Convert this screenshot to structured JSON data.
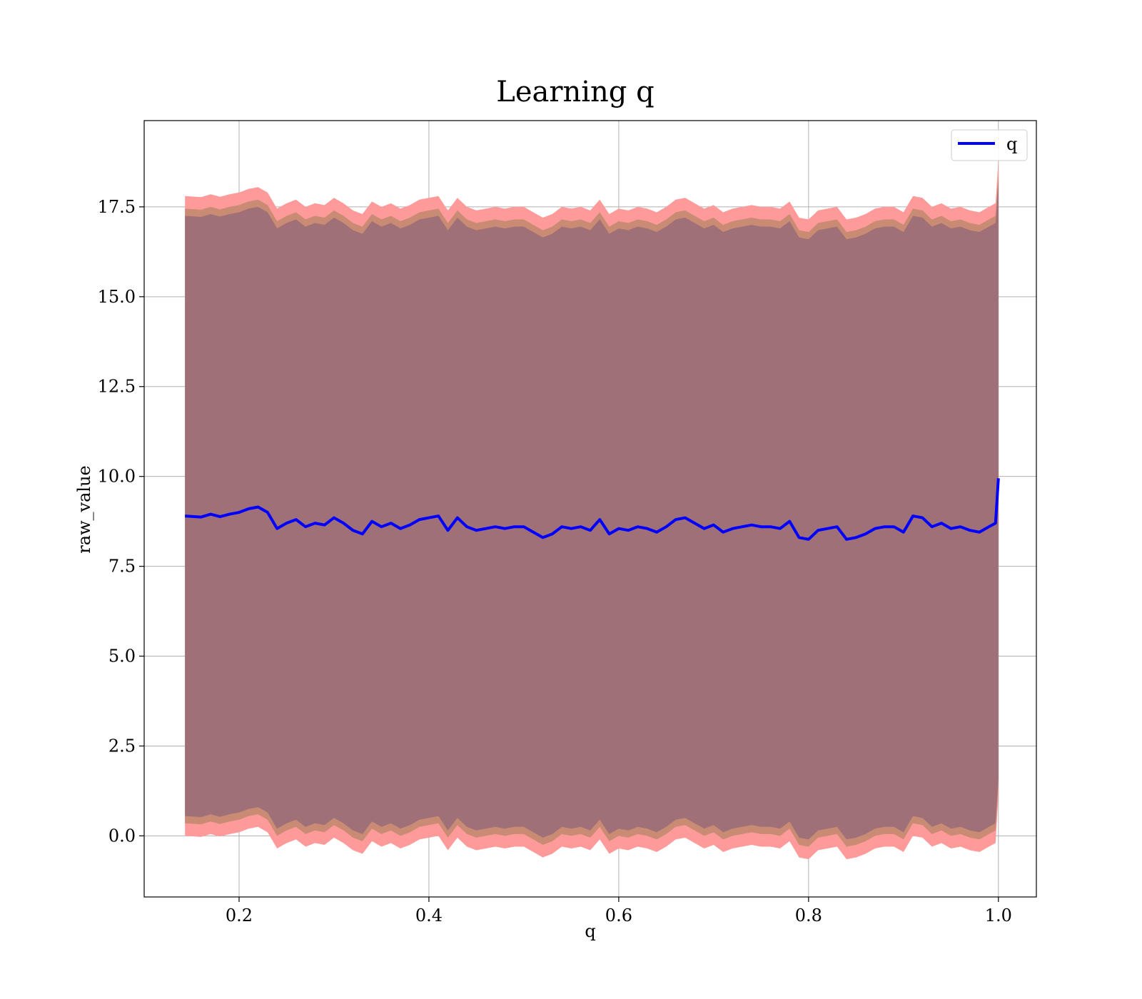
{
  "chart_data": {
    "type": "line",
    "title": "Learning q",
    "xlabel": "q",
    "ylabel": "raw_value",
    "xlim": [
      0.1,
      1.04
    ],
    "ylim": [
      -1.7,
      19.9
    ],
    "grid": true,
    "legend_position": "top-right",
    "x_ticks": [
      0.2,
      0.4,
      0.6,
      0.8,
      1.0
    ],
    "x_tick_labels": [
      "0.2",
      "0.4",
      "0.6",
      "0.8",
      "1.0"
    ],
    "y_ticks": [
      0.0,
      2.5,
      5.0,
      7.5,
      10.0,
      12.5,
      15.0,
      17.5
    ],
    "y_tick_labels": [
      "0.0",
      "2.5",
      "5.0",
      "7.5",
      "10.0",
      "12.5",
      "15.0",
      "17.5"
    ],
    "colors": {
      "line": "#0000ff",
      "band_outer": "#ff9a9a",
      "band_middle": "#c98b73",
      "band_inner": "#a07078",
      "grid": "#b0b0b0"
    },
    "series": [
      {
        "name": "q",
        "x": [
          0.143,
          0.16,
          0.17,
          0.18,
          0.19,
          0.2,
          0.21,
          0.22,
          0.23,
          0.24,
          0.25,
          0.26,
          0.27,
          0.28,
          0.29,
          0.3,
          0.31,
          0.32,
          0.33,
          0.34,
          0.35,
          0.36,
          0.37,
          0.38,
          0.39,
          0.4,
          0.41,
          0.42,
          0.43,
          0.44,
          0.45,
          0.46,
          0.47,
          0.48,
          0.49,
          0.5,
          0.51,
          0.52,
          0.53,
          0.54,
          0.55,
          0.56,
          0.57,
          0.58,
          0.59,
          0.6,
          0.61,
          0.62,
          0.63,
          0.64,
          0.65,
          0.66,
          0.67,
          0.68,
          0.69,
          0.7,
          0.71,
          0.72,
          0.73,
          0.74,
          0.75,
          0.76,
          0.77,
          0.78,
          0.79,
          0.8,
          0.81,
          0.82,
          0.83,
          0.84,
          0.85,
          0.86,
          0.87,
          0.88,
          0.89,
          0.9,
          0.91,
          0.92,
          0.93,
          0.94,
          0.95,
          0.96,
          0.97,
          0.98,
          0.99,
          0.997,
          1.0
        ],
        "values": [
          8.9,
          8.87,
          8.95,
          8.88,
          8.95,
          9.0,
          9.1,
          9.15,
          9.0,
          8.55,
          8.7,
          8.8,
          8.6,
          8.7,
          8.65,
          8.85,
          8.7,
          8.5,
          8.4,
          8.75,
          8.6,
          8.7,
          8.55,
          8.65,
          8.8,
          8.85,
          8.9,
          8.5,
          8.85,
          8.6,
          8.5,
          8.55,
          8.6,
          8.55,
          8.6,
          8.6,
          8.45,
          8.3,
          8.4,
          8.6,
          8.55,
          8.6,
          8.5,
          8.8,
          8.4,
          8.55,
          8.5,
          8.6,
          8.55,
          8.45,
          8.6,
          8.8,
          8.85,
          8.7,
          8.55,
          8.65,
          8.45,
          8.55,
          8.6,
          8.65,
          8.6,
          8.6,
          8.55,
          8.75,
          8.3,
          8.25,
          8.5,
          8.55,
          8.6,
          8.25,
          8.3,
          8.4,
          8.55,
          8.6,
          8.6,
          8.45,
          8.9,
          8.85,
          8.6,
          8.7,
          8.55,
          8.6,
          8.5,
          8.45,
          8.6,
          8.7,
          9.95
        ],
        "band_outer_upper": [
          17.8,
          17.77,
          17.85,
          17.78,
          17.85,
          17.9,
          18.0,
          18.05,
          17.9,
          17.45,
          17.6,
          17.7,
          17.5,
          17.6,
          17.55,
          17.75,
          17.6,
          17.4,
          17.3,
          17.65,
          17.5,
          17.6,
          17.45,
          17.55,
          17.7,
          17.75,
          17.8,
          17.4,
          17.75,
          17.5,
          17.4,
          17.45,
          17.5,
          17.45,
          17.5,
          17.5,
          17.35,
          17.2,
          17.3,
          17.5,
          17.45,
          17.5,
          17.4,
          17.7,
          17.3,
          17.45,
          17.4,
          17.5,
          17.45,
          17.35,
          17.5,
          17.7,
          17.75,
          17.6,
          17.45,
          17.55,
          17.35,
          17.45,
          17.5,
          17.55,
          17.5,
          17.5,
          17.45,
          17.65,
          17.2,
          17.15,
          17.4,
          17.45,
          17.5,
          17.15,
          17.2,
          17.3,
          17.45,
          17.5,
          17.5,
          17.35,
          17.8,
          17.75,
          17.5,
          17.6,
          17.45,
          17.5,
          17.4,
          17.35,
          17.5,
          17.6,
          18.8
        ],
        "band_outer_lower": [
          0.0,
          -0.03,
          0.05,
          -0.02,
          0.05,
          0.1,
          0.2,
          0.25,
          0.1,
          -0.35,
          -0.2,
          -0.1,
          -0.3,
          -0.2,
          -0.25,
          -0.05,
          -0.2,
          -0.4,
          -0.5,
          -0.15,
          -0.3,
          -0.2,
          -0.35,
          -0.25,
          -0.1,
          -0.05,
          0.0,
          -0.4,
          -0.05,
          -0.3,
          -0.4,
          -0.35,
          -0.3,
          -0.35,
          -0.3,
          -0.3,
          -0.45,
          -0.6,
          -0.5,
          -0.3,
          -0.35,
          -0.3,
          -0.4,
          -0.1,
          -0.5,
          -0.35,
          -0.4,
          -0.3,
          -0.35,
          -0.45,
          -0.3,
          -0.1,
          -0.05,
          -0.2,
          -0.35,
          -0.25,
          -0.45,
          -0.35,
          -0.3,
          -0.25,
          -0.3,
          -0.3,
          -0.35,
          -0.15,
          -0.6,
          -0.65,
          -0.4,
          -0.35,
          -0.3,
          -0.65,
          -0.6,
          -0.5,
          -0.35,
          -0.3,
          -0.3,
          -0.45,
          0.0,
          -0.05,
          -0.3,
          -0.2,
          -0.35,
          -0.3,
          -0.4,
          -0.45,
          -0.3,
          -0.2,
          1.1
        ],
        "band_middle_upper": [
          17.45,
          17.42,
          17.5,
          17.43,
          17.5,
          17.55,
          17.65,
          17.7,
          17.55,
          17.1,
          17.25,
          17.35,
          17.15,
          17.25,
          17.2,
          17.4,
          17.25,
          17.05,
          16.95,
          17.3,
          17.15,
          17.25,
          17.1,
          17.2,
          17.35,
          17.4,
          17.45,
          17.05,
          17.4,
          17.15,
          17.05,
          17.1,
          17.15,
          17.1,
          17.15,
          17.15,
          17.0,
          16.85,
          16.95,
          17.15,
          17.1,
          17.15,
          17.05,
          17.35,
          16.95,
          17.1,
          17.05,
          17.15,
          17.1,
          17.0,
          17.15,
          17.35,
          17.4,
          17.25,
          17.1,
          17.2,
          17.0,
          17.1,
          17.15,
          17.2,
          17.15,
          17.15,
          17.1,
          17.3,
          16.85,
          16.8,
          17.05,
          17.1,
          17.15,
          16.8,
          16.85,
          16.95,
          17.1,
          17.15,
          17.15,
          17.0,
          17.45,
          17.4,
          17.15,
          17.25,
          17.1,
          17.15,
          17.05,
          17.0,
          17.15,
          17.25,
          18.4
        ],
        "band_middle_lower": [
          0.35,
          0.32,
          0.4,
          0.33,
          0.4,
          0.45,
          0.55,
          0.6,
          0.45,
          0.0,
          0.15,
          0.25,
          0.05,
          0.15,
          0.1,
          0.3,
          0.15,
          -0.05,
          -0.15,
          0.2,
          0.05,
          0.15,
          0.0,
          0.1,
          0.25,
          0.3,
          0.35,
          -0.05,
          0.3,
          0.05,
          -0.05,
          0.0,
          0.05,
          0.0,
          0.05,
          0.05,
          -0.1,
          -0.25,
          -0.15,
          0.05,
          0.0,
          0.05,
          -0.05,
          0.25,
          -0.15,
          0.0,
          -0.05,
          0.05,
          0.0,
          -0.1,
          0.05,
          0.25,
          0.3,
          0.15,
          0.0,
          0.1,
          -0.1,
          0.0,
          0.05,
          0.1,
          0.05,
          0.05,
          0.0,
          0.2,
          -0.25,
          -0.3,
          -0.05,
          0.0,
          0.05,
          -0.3,
          -0.25,
          -0.15,
          0.0,
          0.05,
          0.05,
          -0.1,
          0.35,
          0.3,
          0.05,
          0.15,
          0.0,
          0.05,
          -0.05,
          -0.1,
          0.05,
          0.15,
          1.4
        ],
        "band_inner_upper": [
          17.25,
          17.22,
          17.3,
          17.23,
          17.3,
          17.35,
          17.45,
          17.5,
          17.35,
          16.9,
          17.05,
          17.15,
          16.95,
          17.05,
          17.0,
          17.2,
          17.05,
          16.85,
          16.75,
          17.1,
          16.95,
          17.05,
          16.9,
          17.0,
          17.15,
          17.2,
          17.25,
          16.85,
          17.2,
          16.95,
          16.85,
          16.9,
          16.95,
          16.9,
          16.95,
          16.95,
          16.8,
          16.65,
          16.75,
          16.95,
          16.9,
          16.95,
          16.85,
          17.15,
          16.75,
          16.9,
          16.85,
          16.95,
          16.9,
          16.8,
          16.95,
          17.15,
          17.2,
          17.05,
          16.9,
          17.0,
          16.8,
          16.9,
          16.95,
          17.0,
          16.95,
          16.95,
          16.9,
          17.1,
          16.65,
          16.6,
          16.85,
          16.9,
          16.95,
          16.6,
          16.65,
          16.75,
          16.9,
          16.95,
          16.95,
          16.8,
          17.25,
          17.2,
          16.95,
          17.05,
          16.9,
          16.95,
          16.85,
          16.8,
          16.95,
          17.05,
          18.2
        ],
        "band_inner_lower": [
          0.55,
          0.52,
          0.6,
          0.53,
          0.6,
          0.65,
          0.75,
          0.8,
          0.65,
          0.2,
          0.35,
          0.45,
          0.25,
          0.35,
          0.3,
          0.5,
          0.35,
          0.15,
          0.05,
          0.4,
          0.25,
          0.35,
          0.2,
          0.3,
          0.45,
          0.5,
          0.55,
          0.15,
          0.5,
          0.25,
          0.15,
          0.2,
          0.25,
          0.2,
          0.25,
          0.25,
          0.1,
          -0.05,
          0.05,
          0.25,
          0.2,
          0.25,
          0.15,
          0.45,
          0.05,
          0.2,
          0.15,
          0.25,
          0.2,
          0.1,
          0.25,
          0.45,
          0.5,
          0.35,
          0.2,
          0.3,
          0.1,
          0.2,
          0.25,
          0.3,
          0.25,
          0.25,
          0.2,
          0.4,
          -0.05,
          -0.1,
          0.15,
          0.2,
          0.25,
          -0.1,
          -0.05,
          0.05,
          0.2,
          0.25,
          0.25,
          0.1,
          0.55,
          0.5,
          0.25,
          0.35,
          0.2,
          0.25,
          0.15,
          0.1,
          0.25,
          0.35,
          1.6
        ]
      }
    ]
  }
}
